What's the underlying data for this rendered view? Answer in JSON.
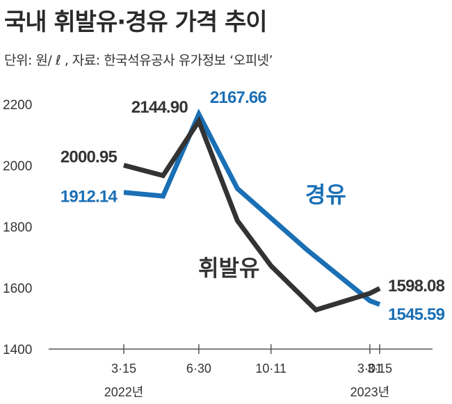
{
  "header": {
    "title": "국내 휘발유·경유 가격 추이",
    "subtitle": "단위: 원/ ℓ , 자료: 한국석유공사 유가정보 ‘오피넷’"
  },
  "colors": {
    "gasoline": "#333333",
    "diesel": "#1a6fb5",
    "axis": "#555555"
  },
  "chart_data": {
    "type": "line",
    "title": "국내 휘발유·경유 가격 추이",
    "ylim": [
      1400,
      2200
    ],
    "yticks": [
      "1400",
      "1600",
      "1800",
      "2000",
      "2200"
    ],
    "xticks": [
      {
        "x": "2022-03-15",
        "label": "3·15"
      },
      {
        "x": "2022-06-30",
        "label": "6·30"
      },
      {
        "x": "2022-10-11",
        "label": "10·11"
      },
      {
        "x": "2023-03-01",
        "label": "3·01"
      },
      {
        "x": "2023-03-15",
        "label": "3·15"
      }
    ],
    "year_labels": [
      {
        "x": "2022-03-15",
        "label": "2022년"
      },
      {
        "x": "2023-03-01",
        "label": "2023년"
      }
    ],
    "series": [
      {
        "name": "휘발유",
        "color": "#333333",
        "points": [
          {
            "x": "2022-03-15",
            "y": 2000.95
          },
          {
            "x": "2022-05-10",
            "y": 1967
          },
          {
            "x": "2022-06-30",
            "y": 2144.9
          },
          {
            "x": "2022-08-24",
            "y": 1820
          },
          {
            "x": "2022-10-11",
            "y": 1672
          },
          {
            "x": "2022-12-14",
            "y": 1528
          },
          {
            "x": "2023-03-01",
            "y": 1582
          },
          {
            "x": "2023-03-15",
            "y": 1598.08
          }
        ],
        "labels": [
          {
            "x": "2022-03-15",
            "text": "2000.95"
          },
          {
            "x": "2022-06-30",
            "text": "2144.90"
          },
          {
            "x": "2023-03-15",
            "text": "1598.08"
          }
        ]
      },
      {
        "name": "경유",
        "color": "#1a6fb5",
        "points": [
          {
            "x": "2022-03-15",
            "y": 1912.14
          },
          {
            "x": "2022-05-10",
            "y": 1900
          },
          {
            "x": "2022-06-30",
            "y": 2167.66
          },
          {
            "x": "2022-08-24",
            "y": 1925
          },
          {
            "x": "2022-12-01",
            "y": 1725
          },
          {
            "x": "2023-03-01",
            "y": 1558
          },
          {
            "x": "2023-03-15",
            "y": 1545.59
          }
        ],
        "labels": [
          {
            "x": "2022-03-15",
            "text": "1912.14"
          },
          {
            "x": "2022-06-30",
            "text": "2167.66"
          },
          {
            "x": "2023-03-15",
            "text": "1545.59"
          }
        ]
      }
    ]
  }
}
